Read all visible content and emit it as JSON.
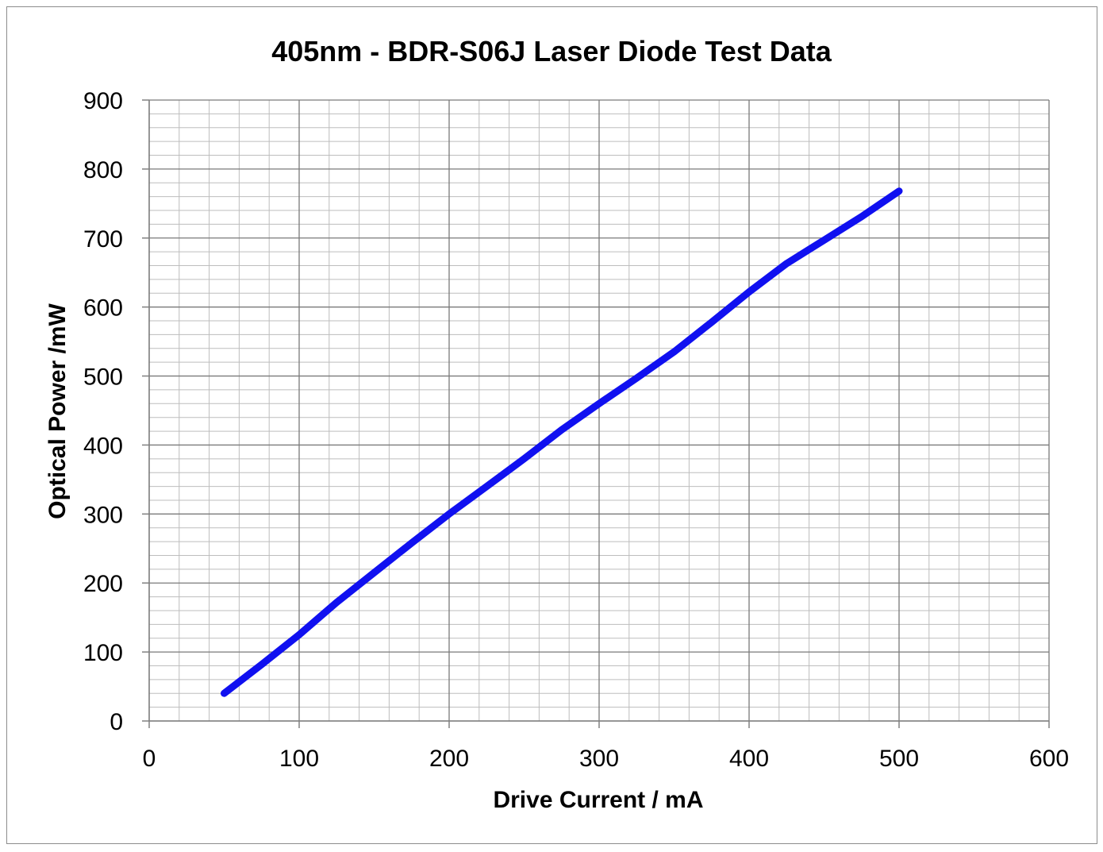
{
  "chart_data": {
    "type": "line",
    "title": "405nm - BDR-S06J Laser Diode Test Data",
    "xlabel": "Drive Current / mA",
    "ylabel": "Optical Power /mW",
    "xlim": [
      0,
      600
    ],
    "ylim": [
      0,
      900
    ],
    "x_ticks": [
      "0",
      "100",
      "200",
      "300",
      "400",
      "500",
      "600"
    ],
    "y_ticks": [
      "0",
      "100",
      "200",
      "300",
      "400",
      "500",
      "600",
      "700",
      "800",
      "900"
    ],
    "grid": true,
    "legend": "none",
    "series": [
      {
        "color": "#1010f0",
        "points": [
          [
            50,
            40
          ],
          [
            75,
            82
          ],
          [
            100,
            125
          ],
          [
            125,
            172
          ],
          [
            150,
            215
          ],
          [
            175,
            258
          ],
          [
            200,
            300
          ],
          [
            225,
            340
          ],
          [
            250,
            380
          ],
          [
            275,
            422
          ],
          [
            300,
            460
          ],
          [
            325,
            497
          ],
          [
            350,
            535
          ],
          [
            375,
            578
          ],
          [
            400,
            622
          ],
          [
            425,
            663
          ],
          [
            450,
            697
          ],
          [
            475,
            731
          ],
          [
            500,
            768
          ]
        ]
      }
    ]
  }
}
